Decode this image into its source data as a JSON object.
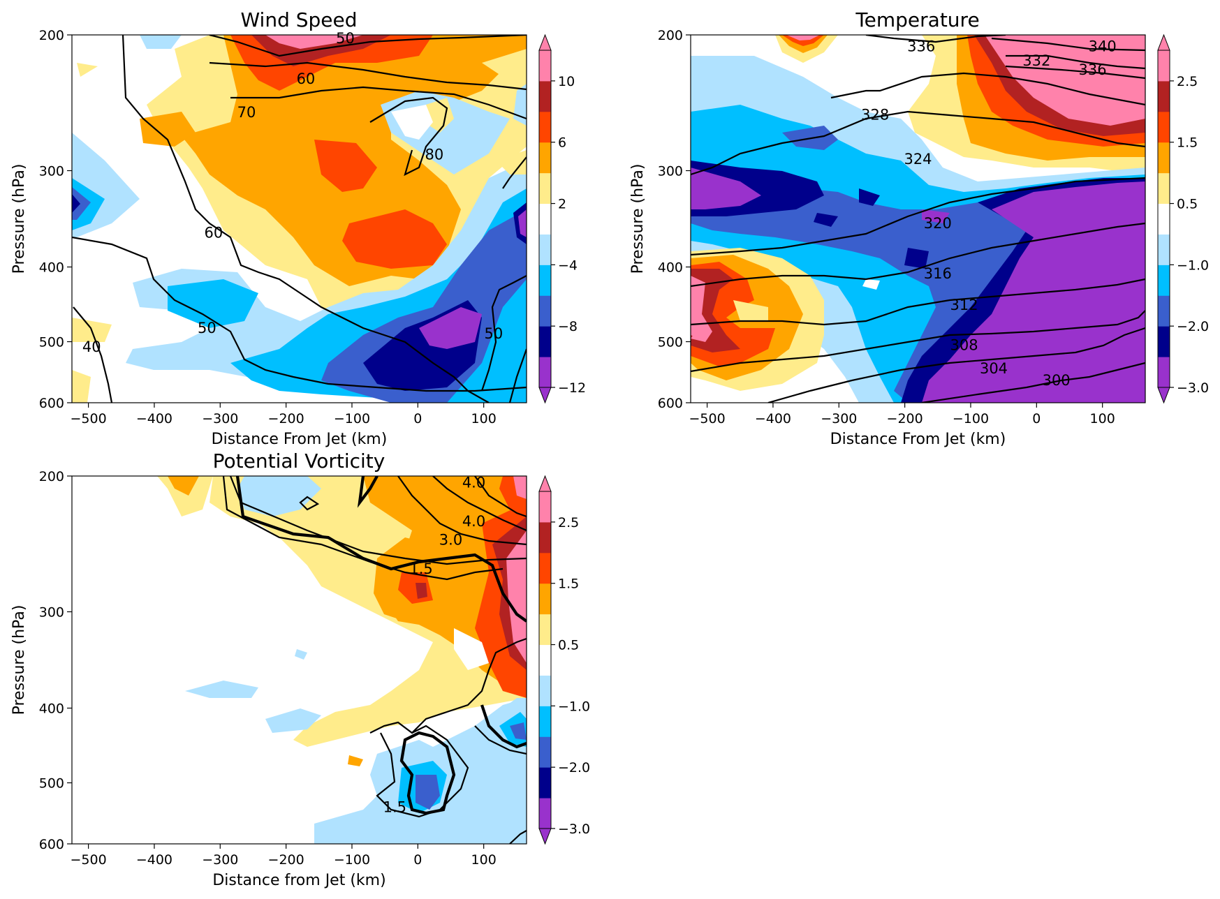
{
  "chart_data": [
    {
      "type": "heatmap",
      "title": "Wind Speed",
      "xlabel": "Distance From Jet (km)",
      "ylabel": "Pressure (hPa)",
      "xlim": [
        -525,
        165
      ],
      "ylim": [
        600,
        200
      ],
      "yscale": "log",
      "xticks": [
        -500,
        -400,
        -300,
        -200,
        -100,
        0,
        100
      ],
      "xtick_labels": [
        "−500",
        "−400",
        "−300",
        "−200",
        "−100",
        "0",
        "100"
      ],
      "yticks": [
        200,
        300,
        400,
        500,
        600
      ],
      "ytick_labels": [
        "200",
        "300",
        "400",
        "500",
        "600"
      ],
      "colorbar": {
        "boundaries": [
          -12,
          -10,
          -8,
          -6,
          -4,
          -2,
          2,
          4,
          6,
          8,
          10,
          12
        ],
        "tick_values": [
          10,
          6,
          2,
          -4,
          -8,
          -12
        ],
        "tick_labels": [
          "10",
          "6",
          "2",
          "−4",
          "−8",
          "−12"
        ],
        "extend": "both"
      },
      "contour_labels": [
        {
          "text": "50",
          "x": -110,
          "y": 202
        },
        {
          "text": "60",
          "x": -170,
          "y": 228
        },
        {
          "text": "70",
          "x": -260,
          "y": 252
        },
        {
          "text": "80",
          "x": 25,
          "y": 286
        },
        {
          "text": "60",
          "x": -310,
          "y": 361
        },
        {
          "text": "50",
          "x": -320,
          "y": 480
        },
        {
          "text": "40",
          "x": -495,
          "y": 508
        },
        {
          "text": "50",
          "x": 115,
          "y": 488
        }
      ]
    },
    {
      "type": "heatmap",
      "title": "Temperature",
      "xlabel": "Distance From Jet (km)",
      "ylabel": "Pressure (hPa)",
      "xlim": [
        -525,
        165
      ],
      "ylim": [
        600,
        200
      ],
      "yscale": "log",
      "xticks": [
        -500,
        -400,
        -300,
        -200,
        -100,
        0,
        100
      ],
      "xtick_labels": [
        "−500",
        "−400",
        "−300",
        "−200",
        "−100",
        "0",
        "100"
      ],
      "yticks": [
        200,
        300,
        400,
        500,
        600
      ],
      "ytick_labels": [
        "200",
        "300",
        "400",
        "500",
        "600"
      ],
      "colorbar": {
        "boundaries": [
          -3.0,
          -2.5,
          -2.0,
          -1.5,
          -1.0,
          -0.5,
          0.5,
          1.0,
          1.5,
          2.0,
          2.5,
          3.0
        ],
        "tick_values": [
          2.5,
          1.5,
          0.5,
          -1.0,
          -2.0,
          -3.0
        ],
        "tick_labels": [
          "2.5",
          "1.5",
          "0.5",
          "−1.0",
          "−2.0",
          "−3.0"
        ],
        "extend": "both"
      },
      "contour_labels": [
        {
          "text": "336",
          "x": -175,
          "y": 207
        },
        {
          "text": "340",
          "x": 100,
          "y": 207
        },
        {
          "text": "332",
          "x": 0,
          "y": 216
        },
        {
          "text": "336",
          "x": 85,
          "y": 222
        },
        {
          "text": "328",
          "x": -245,
          "y": 254
        },
        {
          "text": "324",
          "x": -180,
          "y": 290
        },
        {
          "text": "320",
          "x": -150,
          "y": 351
        },
        {
          "text": "316",
          "x": -150,
          "y": 408
        },
        {
          "text": "312",
          "x": -110,
          "y": 448
        },
        {
          "text": "308",
          "x": -110,
          "y": 505
        },
        {
          "text": "304",
          "x": -65,
          "y": 542
        },
        {
          "text": "300",
          "x": 30,
          "y": 561
        }
      ]
    },
    {
      "type": "heatmap",
      "title": "Potential Vorticity",
      "xlabel": "Distance from Jet (km)",
      "ylabel": "Pressure (hPa)",
      "xlim": [
        -525,
        165
      ],
      "ylim": [
        600,
        200
      ],
      "yscale": "log",
      "xticks": [
        -500,
        -400,
        -300,
        -200,
        -100,
        0,
        100
      ],
      "xtick_labels": [
        "−500",
        "−400",
        "−300",
        "−200",
        "−100",
        "0",
        "100"
      ],
      "yticks": [
        200,
        300,
        400,
        500,
        600
      ],
      "ytick_labels": [
        "200",
        "300",
        "400",
        "500",
        "600"
      ],
      "colorbar": {
        "boundaries": [
          -3.0,
          -2.5,
          -2.0,
          -1.5,
          -1.0,
          -0.5,
          0.5,
          1.0,
          1.5,
          2.0,
          2.5,
          3.0
        ],
        "tick_values": [
          2.5,
          1.5,
          0.5,
          -1.0,
          -2.0,
          -3.0
        ],
        "tick_labels": [
          "2.5",
          "1.5",
          "0.5",
          "−1.0",
          "−2.0",
          "−3.0"
        ],
        "extend": "both"
      },
      "contour_labels": [
        {
          "text": "4.0",
          "x": 85,
          "y": 204
        },
        {
          "text": "4.0",
          "x": 85,
          "y": 229
        },
        {
          "text": "3.0",
          "x": 50,
          "y": 242
        },
        {
          "text": "1.5",
          "x": 5,
          "y": 264
        },
        {
          "text": "1.5",
          "x": -35,
          "y": 538
        }
      ]
    }
  ],
  "palette": {
    "diverging": [
      "#9932CC",
      "#00008B",
      "#3A5FCD",
      "#00BFFF",
      "#B0E2FF",
      "#FFFFFF",
      "#FFEC8B",
      "#FFA500",
      "#FF4500",
      "#B22222",
      "#FF82AB"
    ],
    "line": "#000000"
  }
}
